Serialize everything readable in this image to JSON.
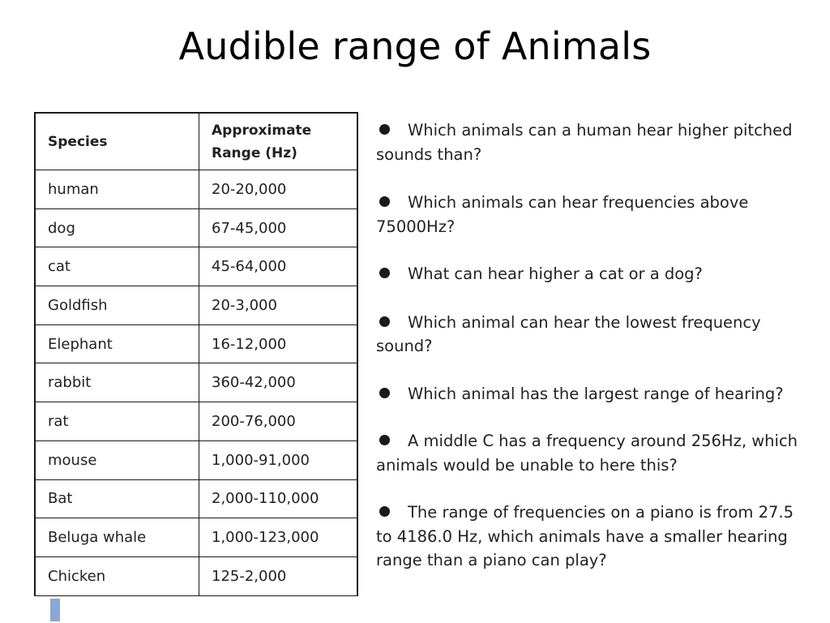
{
  "title": "Audible range of Animals",
  "table": {
    "headers": [
      "Species",
      "Approximate Range (Hz)"
    ],
    "header_lines": [
      "Approximate",
      "Range (Hz)"
    ],
    "rows": [
      [
        "human",
        "20-20,000"
      ],
      [
        "dog",
        "67-45,000"
      ],
      [
        "cat",
        "45-64,000"
      ],
      [
        "Goldfish",
        "20-3,000"
      ],
      [
        "Elephant",
        "16-12,000"
      ],
      [
        "rabbit",
        "360-42,000"
      ],
      [
        "rat",
        "200-76,000"
      ],
      [
        "mouse",
        "1,000-91,000"
      ],
      [
        "Bat",
        "2,000-110,000"
      ],
      [
        "Beluga whale",
        "1,000-123,000"
      ],
      [
        "Chicken",
        "125-2,000"
      ]
    ]
  },
  "questions": [
    "Which animals can a human hear higher pitched sounds than?",
    "Which animals can hear frequencies above 75000Hz?",
    "What can hear higher a cat or a dog?",
    "Which animal can hear the lowest frequency sound?",
    "Which animal has the largest range of hearing?",
    "A middle C has a frequency around 256Hz, which animals would be unable to here this?",
    "The range of frequencies on a piano is from 27.5 to 4186.0 Hz, which animals have a smaller hearing range than a piano can play?"
  ],
  "colors": {
    "marker": "#8aa7d6",
    "text": "#222222"
  }
}
